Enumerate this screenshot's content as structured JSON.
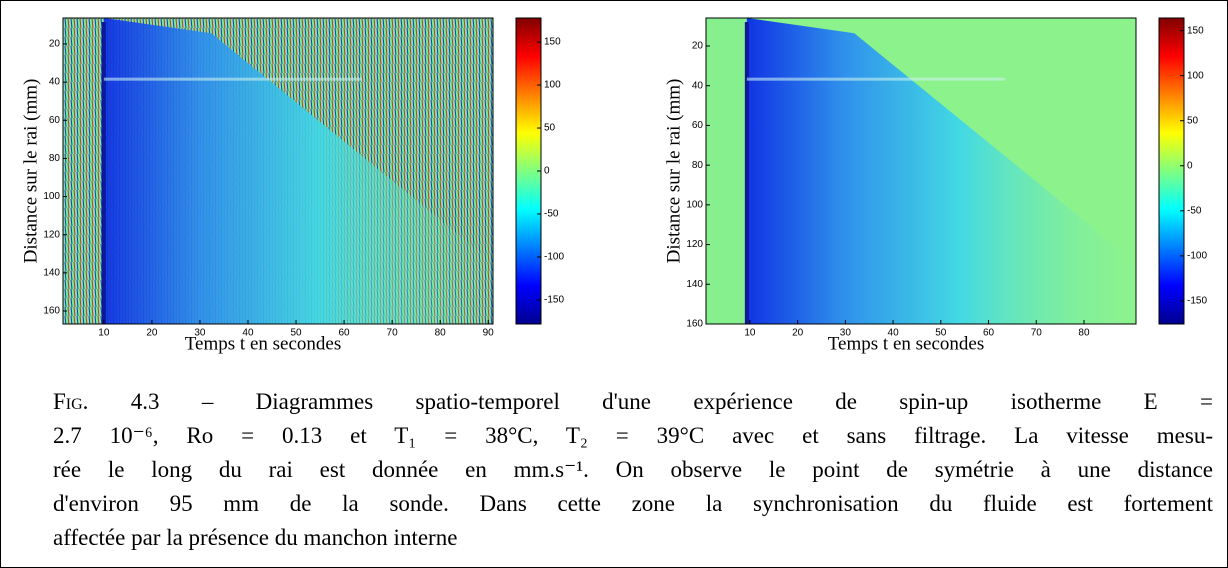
{
  "charts": [
    {
      "type": "heatmap",
      "xlabel": "Temps t en secondes",
      "ylabel": "Distance sur le rai (mm)",
      "xlim": [
        1.5,
        91
      ],
      "xticks": [
        10,
        20,
        30,
        40,
        50,
        60,
        70,
        80,
        90
      ],
      "ylim": [
        6.4,
        166.8
      ],
      "yticks": [
        20,
        40,
        60,
        80,
        100,
        120,
        140,
        160
      ],
      "clim": [
        -178,
        178
      ],
      "cticks": [
        150,
        100,
        50,
        0,
        -50,
        -100,
        -150
      ]
    },
    {
      "type": "heatmap",
      "xlabel": "Temps t en secondes",
      "ylabel": "Distance sur le rai (mm)",
      "xlim": [
        0.8,
        90.9
      ],
      "xticks": [
        10,
        20,
        30,
        40,
        50,
        60,
        70,
        80
      ],
      "ylim": [
        5.9,
        160
      ],
      "yticks": [
        20,
        40,
        60,
        80,
        100,
        120,
        140,
        160
      ],
      "clim": [
        -175.6,
        164
      ],
      "cticks": [
        150,
        100,
        50,
        0,
        -50,
        -100,
        -150
      ]
    }
  ],
  "caption": {
    "label": "Fig. 4.3",
    "lines": [
      "– Diagrammes spatio-temporel d'une expérience de spin-up isotherme E =",
      "2.7 10⁻⁶, Ro = 0.13 et T₁ = 38°C, T₂ = 39°C avec et sans filtrage. La vitesse mesu-",
      "rée le long du rai est donnée en mm.s⁻¹. On observe le point de symétrie à une distance",
      "d'environ 95 mm de la sonde. Dans cette zone la synchronisation du fluide est fortement",
      "affectée par la présence du manchon interne"
    ]
  }
}
